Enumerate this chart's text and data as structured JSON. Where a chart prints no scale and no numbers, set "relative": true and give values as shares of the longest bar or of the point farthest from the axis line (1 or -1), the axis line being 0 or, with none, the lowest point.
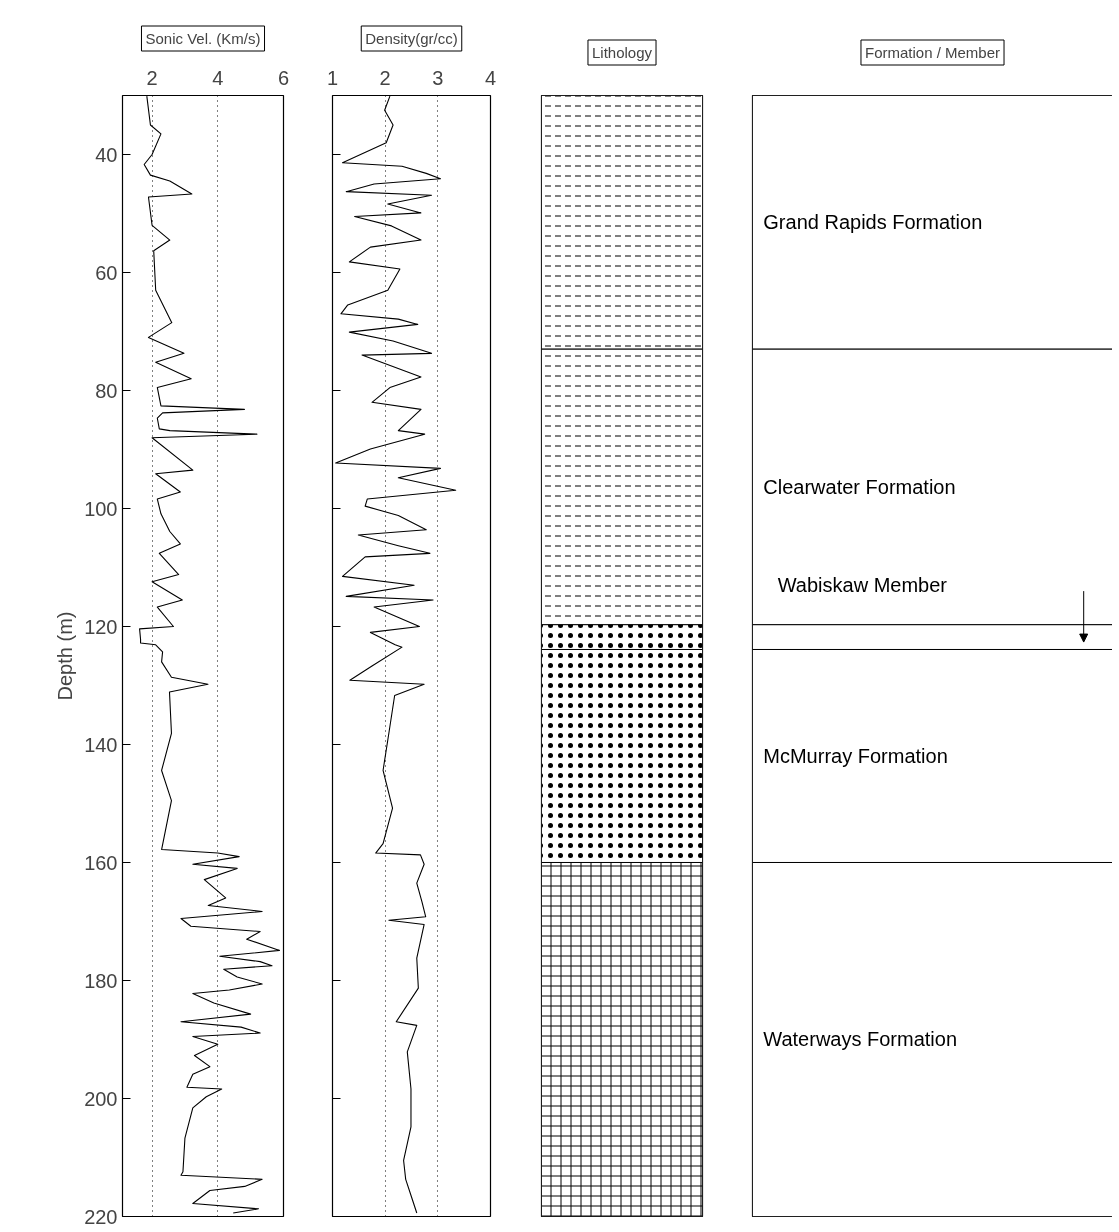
{
  "chart_data": [
    {
      "type": "line",
      "orientation": "horizontal",
      "title": "Sonic Vel. (Km/s)",
      "ylabel": "Depth (m)",
      "color": "#000000",
      "x": [
        30.1,
        35,
        36.5,
        40,
        41.7,
        43.5,
        44.5,
        46.7,
        47.2,
        52,
        54.5,
        56.3,
        63,
        68.5,
        71,
        73.7,
        75.2,
        78,
        79.5,
        82.6,
        83.2,
        83.8,
        84.7,
        86.5,
        86.8,
        87.4,
        88,
        93.5,
        94.1,
        97.2,
        98.4,
        100.9,
        103.9,
        106,
        107.6,
        111.2,
        112.4,
        115.5,
        116.7,
        120,
        120.4,
        122.2,
        122.8,
        123.1,
        124.3,
        126,
        128.6,
        129.8,
        131.1,
        138.1,
        144.4,
        149.5,
        157.8,
        158.4,
        159,
        160.3,
        161,
        162.9,
        166,
        167.3,
        168.3,
        169.5,
        170.8,
        171.7,
        173,
        174.9,
        175.9,
        176.8,
        177.5,
        178.1,
        179.4,
        180.6,
        181.6,
        182.2,
        183.8,
        185.7,
        187,
        187.9,
        188.9,
        189.5,
        190.8,
        192.7,
        194.6,
        195.9,
        198.1,
        198.4,
        199.7,
        201.6,
        206.7,
        212.4,
        213,
        213.7,
        214.9,
        215.6,
        217.8,
        218.7,
        219.4
      ],
      "values": [
        1.84,
        1.95,
        2.27,
        2.0,
        1.76,
        1.95,
        2.54,
        3.21,
        1.89,
        2.0,
        2.54,
        2.05,
        2.11,
        2.6,
        1.89,
        2.97,
        2.11,
        3.19,
        2.16,
        2.27,
        4.81,
        2.32,
        2.16,
        2.22,
        2.54,
        5.19,
        2.0,
        3.24,
        2.11,
        2.86,
        2.16,
        2.27,
        2.54,
        2.86,
        2.22,
        2.81,
        2.0,
        2.92,
        2.16,
        2.65,
        1.62,
        1.65,
        1.65,
        2.11,
        2.32,
        2.29,
        2.59,
        3.7,
        2.53,
        2.59,
        2.29,
        2.59,
        2.29,
        4.0,
        4.65,
        3.24,
        4.59,
        3.59,
        4.24,
        3.71,
        5.35,
        2.88,
        3.18,
        5.29,
        4.88,
        5.88,
        4.06,
        5.29,
        5.65,
        4.18,
        4.59,
        5.35,
        4.35,
        3.24,
        3.88,
        5.0,
        2.88,
        4.71,
        5.29,
        3.24,
        4.0,
        3.29,
        3.76,
        3.24,
        3.06,
        4.12,
        3.65,
        3.24,
        3.0,
        2.94,
        2.88,
        5.35,
        4.82,
        3.76,
        3.24,
        5.24,
        4.47
      ],
      "xlim": [
        1.1,
        6
      ],
      "xticks": [
        2,
        4,
        6
      ],
      "ylim": [
        220,
        30
      ],
      "yticks": [
        40,
        60,
        80,
        100,
        120,
        140,
        160,
        180,
        200,
        220
      ],
      "grid": "x"
    },
    {
      "type": "line",
      "orientation": "horizontal",
      "title": "Density(gr/cc)",
      "color": "#000000",
      "x": [
        30.1,
        32.5,
        35,
        38,
        41.4,
        42,
        43.2,
        44.1,
        45,
        46.3,
        46.9,
        48.4,
        49.9,
        50.5,
        52.1,
        54.5,
        55.7,
        58.2,
        59.4,
        63,
        65.5,
        67,
        67.9,
        68.8,
        70.1,
        71.6,
        73.7,
        74,
        77.7,
        79.5,
        82,
        83.2,
        86.8,
        87.4,
        89.9,
        92.3,
        93.2,
        94.8,
        96.9,
        98.4,
        99.6,
        101.2,
        103.6,
        104.5,
        106.3,
        107.6,
        108.2,
        111.5,
        113,
        114.9,
        115.5,
        116.7,
        120,
        121,
        123.1,
        123.5,
        126.7,
        129.1,
        129.8,
        131.7,
        138.1,
        144.4,
        150.8,
        156.8,
        158.4,
        158.7,
        160.3,
        163.5,
        166.7,
        169.2,
        169.8,
        170.5,
        176.2,
        181.3,
        187,
        187.6,
        192.1,
        198.4,
        204.8,
        210.5,
        213.7,
        217.5,
        219.4
      ],
      "values": [
        2.09,
        1.99,
        2.15,
        2.02,
        1.19,
        2.32,
        2.78,
        3.05,
        1.79,
        1.26,
        2.88,
        2.05,
        2.68,
        1.42,
        2.12,
        2.68,
        1.72,
        1.32,
        2.28,
        2.05,
        1.29,
        1.16,
        2.25,
        2.62,
        1.32,
        2.15,
        2.88,
        1.56,
        2.68,
        2.09,
        1.75,
        2.68,
        2.25,
        2.75,
        1.72,
        1.06,
        3.05,
        2.25,
        3.34,
        1.66,
        1.62,
        2.25,
        2.78,
        1.49,
        2.25,
        2.85,
        1.62,
        1.19,
        2.55,
        1.26,
        2.91,
        1.79,
        2.65,
        1.72,
        2.19,
        2.32,
        1.75,
        1.33,
        2.74,
        2.18,
        2.07,
        1.96,
        2.14,
        1.96,
        1.82,
        2.67,
        2.74,
        2.6,
        2.7,
        2.77,
        2.07,
        2.74,
        2.6,
        2.63,
        2.21,
        2.6,
        2.42,
        2.49,
        2.49,
        2.35,
        2.39,
        2.53,
        2.6
      ],
      "xlim": [
        1,
        4
      ],
      "xticks": [
        1,
        2,
        3,
        4
      ],
      "ylim": [
        220,
        30
      ],
      "yticks": [
        40,
        60,
        80,
        100,
        120,
        140,
        160,
        180,
        200,
        220
      ],
      "grid": "x",
      "tick_labels": "x"
    },
    {
      "type": "bar",
      "title": "Lithology",
      "stacked": true,
      "relative": true,
      "categories": [
        null
      ],
      "series": [
        {
          "color": "#ffffff",
          "values": [
            -0.2263
          ]
        },
        {
          "color": "#ffffff",
          "values": [
            -0.2458
          ]
        },
        {
          "color": "#ffffff",
          "values": [
            -0.0221
          ]
        },
        {
          "color": "#ffffff",
          "values": [
            -0.19
          ]
        },
        {
          "color": "#ffffff",
          "values": [
            -0.3158
          ]
        }
      ]
    },
    {
      "type": "bar",
      "title": "Formation / Member",
      "stacked": true,
      "relative": true,
      "categories": [
        null
      ],
      "series": [
        {
          "name": "Grand Rapids Formation",
          "color": "#ffffff",
          "values": [
            -0.2263
          ]
        },
        {
          "name": "Clearwater Formation",
          "color": "#ffffff",
          "values": [
            -0.2458
          ]
        },
        {
          "name": "Wabiskaw   Member",
          "color": "#ffffff",
          "values": [
            -0.0221
          ]
        },
        {
          "name": "McMurray Formation",
          "color": "#ffffff",
          "values": [
            -0.19
          ]
        },
        {
          "name": "Waterways Formation",
          "color": "#ffffff",
          "values": [
            -0.3158
          ]
        }
      ]
    }
  ]
}
